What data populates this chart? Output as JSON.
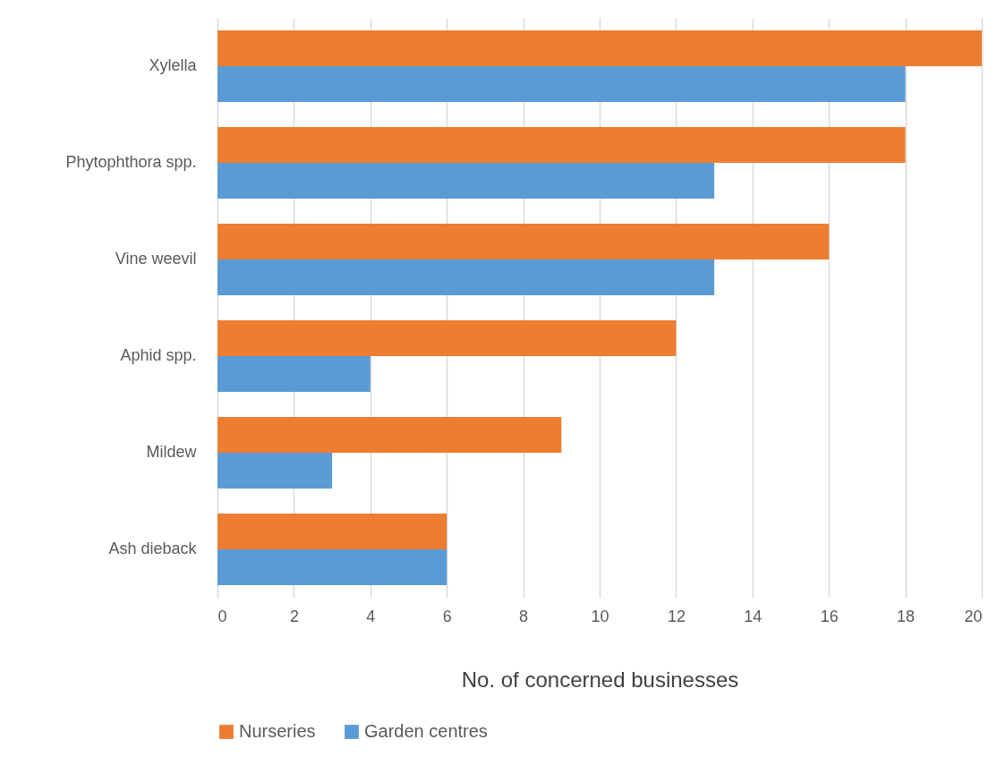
{
  "chart_data": {
    "type": "bar",
    "orientation": "horizontal",
    "xlabel": "No. of concerned businesses",
    "categories": [
      "Xylella",
      "Phytophthora spp.",
      "Vine weevil",
      "Aphid spp.",
      "Mildew",
      "Ash dieback"
    ],
    "series": [
      {
        "name": "Nurseries",
        "color": "#ed7d31",
        "values": [
          20,
          18,
          16,
          12,
          9,
          6
        ]
      },
      {
        "name": "Garden centres",
        "color": "#5b9bd5",
        "values": [
          18,
          13,
          13,
          4,
          3,
          6
        ]
      }
    ],
    "xlim": [
      0,
      20
    ],
    "xticks": [
      0,
      2,
      4,
      6,
      8,
      10,
      12,
      14,
      16,
      18,
      20
    ],
    "grid": "x",
    "legend": "bottom"
  }
}
